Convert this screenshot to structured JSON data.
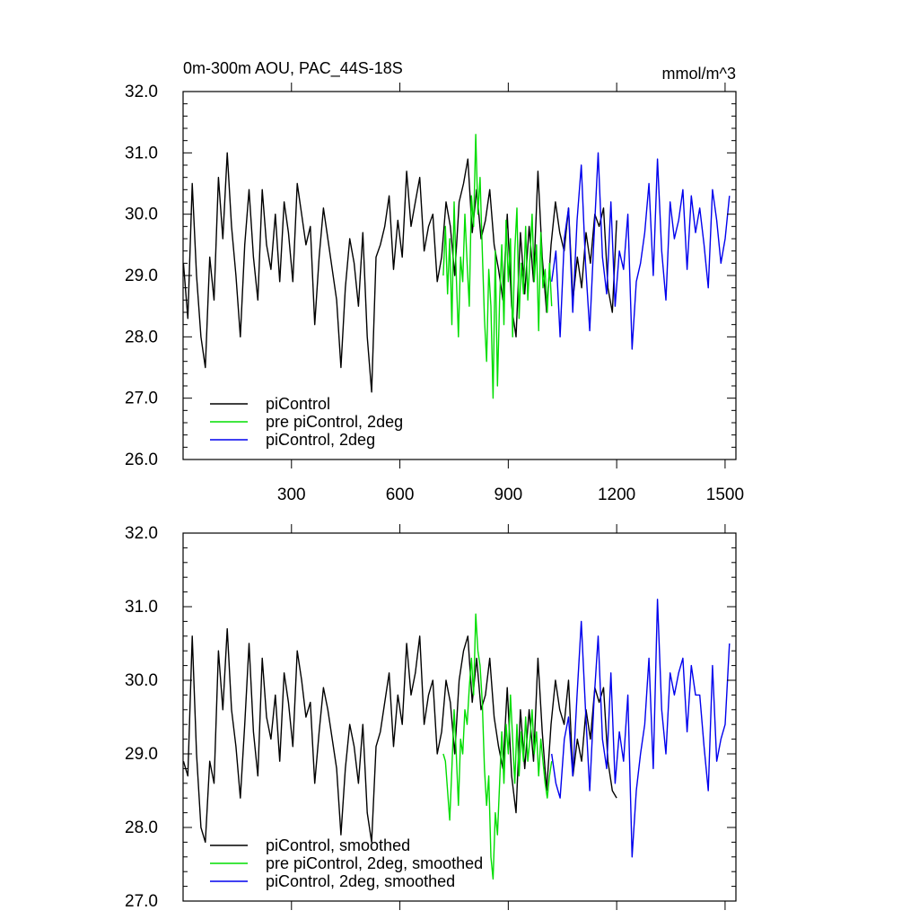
{
  "figure": {
    "title": "0m-300m AOU, PAC_44S-18S",
    "units": "mmol/m^3"
  },
  "chart_data": [
    {
      "type": "line",
      "panel": "top",
      "xlim": [
        0,
        1530
      ],
      "ylim": [
        26.0,
        32.0
      ],
      "xticks": [
        300,
        600,
        900,
        1200,
        1500
      ],
      "xtick_labels": [
        "300",
        "600",
        "900",
        "1200",
        "1500"
      ],
      "yticks": [
        26.0,
        27.0,
        28.0,
        29.0,
        30.0,
        31.0,
        32.0
      ],
      "ytick_labels": [
        "26.0",
        "27.0",
        "28.0",
        "29.0",
        "30.0",
        "31.0",
        "32.0"
      ],
      "legend": "bottom-left",
      "series": [
        {
          "name": "piControl",
          "color": "#000000",
          "x_start": 1,
          "x_end": 1200,
          "step": 12,
          "values": [
            29.2,
            28.3,
            30.5,
            29.0,
            28.0,
            27.5,
            29.3,
            28.6,
            30.6,
            29.6,
            31.0,
            29.8,
            29.0,
            28.0,
            29.5,
            30.4,
            29.3,
            28.6,
            30.4,
            29.5,
            29.1,
            30.0,
            28.9,
            30.2,
            29.7,
            28.9,
            30.5,
            30.0,
            29.5,
            29.8,
            28.2,
            29.3,
            30.1,
            29.6,
            29.1,
            28.6,
            27.5,
            28.8,
            29.6,
            29.2,
            28.5,
            29.7,
            28.0,
            27.1,
            29.3,
            29.5,
            29.8,
            30.3,
            29.1,
            29.9,
            29.3,
            30.7,
            29.8,
            30.2,
            30.6,
            29.4,
            29.8,
            30.0,
            28.9,
            29.3,
            30.2,
            29.8,
            29.0,
            30.2,
            30.5,
            30.9,
            29.7,
            30.4,
            29.6,
            29.9,
            30.4,
            29.5,
            29.1,
            28.6,
            30.0,
            28.5,
            28.0,
            29.7,
            28.7,
            29.8,
            28.9,
            30.7,
            29.3,
            28.4,
            29.5,
            30.2,
            29.7,
            29.4,
            30.1,
            28.6,
            29.3,
            28.8,
            29.7,
            29.2,
            30.0,
            29.8,
            30.1,
            28.8,
            28.4,
            29.9
          ]
        },
        {
          "name": "pre piControl, 2deg",
          "color": "#00dd00",
          "x_start": 720,
          "x_end": 1020,
          "step": 6,
          "values": [
            29.0,
            29.8,
            28.7,
            29.6,
            28.2,
            30.2,
            29.0,
            28.0,
            29.3,
            28.9,
            30.0,
            29.2,
            28.5,
            30.3,
            29.8,
            31.3,
            30.0,
            30.6,
            29.4,
            28.3,
            27.6,
            29.1,
            28.5,
            27.0,
            29.4,
            27.2,
            28.6,
            29.5,
            28.2,
            29.9,
            28.9,
            29.6,
            28.0,
            29.4,
            30.1,
            28.3,
            29.2,
            28.7,
            29.8,
            28.6,
            29.3,
            30.0,
            28.9,
            29.5,
            28.1,
            29.7,
            28.8,
            29.1,
            28.4,
            29.2,
            28.5
          ]
        },
        {
          "name": "piControl, 2deg",
          "color": "#0000ee",
          "x_start": 1020,
          "x_end": 1512,
          "step": 12,
          "values": [
            28.9,
            29.4,
            28.0,
            29.6,
            30.1,
            28.4,
            29.9,
            30.8,
            29.2,
            28.1,
            29.6,
            31.0,
            29.3,
            28.7,
            30.2,
            28.5,
            29.4,
            29.1,
            30.0,
            27.8,
            28.9,
            29.2,
            29.7,
            30.5,
            29.0,
            30.9,
            29.4,
            28.6,
            30.2,
            29.6,
            29.9,
            30.4,
            29.1,
            30.3,
            29.7,
            30.1,
            29.5,
            28.8,
            30.4,
            29.9,
            29.2,
            29.6,
            30.3
          ]
        }
      ]
    },
    {
      "type": "line",
      "panel": "bottom",
      "xlim": [
        0,
        1530
      ],
      "ylim": [
        27.0,
        32.0
      ],
      "xticks": [
        300,
        600,
        900,
        1200,
        1500
      ],
      "xtick_labels": [
        "",
        "",
        "",
        "",
        ""
      ],
      "yticks": [
        27.0,
        28.0,
        29.0,
        30.0,
        31.0,
        32.0
      ],
      "ytick_labels": [
        "27.0",
        "28.0",
        "29.0",
        "30.0",
        "31.0",
        "32.0"
      ],
      "legend": "bottom-left",
      "series": [
        {
          "name": "piControl, smoothed",
          "color": "#000000",
          "x_start": 1,
          "x_end": 1200,
          "step": 12,
          "values": [
            28.9,
            28.7,
            30.6,
            29.0,
            28.0,
            27.8,
            28.9,
            28.6,
            30.4,
            29.6,
            30.7,
            29.6,
            29.1,
            28.4,
            29.4,
            30.5,
            29.3,
            28.7,
            30.3,
            29.5,
            29.2,
            29.8,
            28.9,
            30.1,
            29.7,
            29.1,
            30.4,
            30.0,
            29.5,
            29.7,
            28.6,
            29.3,
            29.9,
            29.6,
            29.2,
            28.8,
            27.9,
            28.8,
            29.4,
            29.1,
            28.6,
            29.4,
            28.2,
            27.8,
            29.1,
            29.3,
            29.7,
            30.1,
            29.1,
            29.8,
            29.4,
            30.5,
            29.8,
            30.1,
            30.6,
            29.4,
            29.8,
            30.0,
            29.0,
            29.3,
            30.0,
            29.7,
            29.0,
            30.0,
            30.4,
            30.6,
            29.7,
            30.3,
            29.6,
            29.8,
            30.3,
            29.5,
            29.1,
            28.8,
            29.9,
            28.7,
            28.2,
            29.6,
            28.8,
            29.6,
            28.9,
            30.3,
            29.3,
            28.5,
            29.4,
            30.0,
            29.6,
            29.4,
            30.0,
            28.7,
            29.2,
            28.9,
            29.6,
            29.2,
            29.9,
            29.7,
            29.9,
            28.9,
            28.5,
            28.4
          ]
        },
        {
          "name": "pre piControl, 2deg, smoothed",
          "color": "#00dd00",
          "x_start": 720,
          "x_end": 1020,
          "step": 6,
          "values": [
            29.0,
            28.9,
            28.5,
            28.1,
            28.8,
            29.6,
            29.0,
            28.3,
            29.2,
            29.0,
            29.6,
            29.4,
            29.9,
            30.3,
            29.8,
            30.9,
            30.4,
            30.2,
            29.7,
            28.8,
            28.3,
            28.7,
            27.6,
            27.3,
            28.2,
            27.9,
            28.6,
            29.3,
            28.6,
            29.4,
            29.0,
            29.8,
            29.2,
            28.6,
            29.4,
            28.7,
            29.3,
            28.9,
            29.5,
            28.9,
            29.2,
            29.6,
            29.0,
            29.3,
            28.7,
            29.2,
            28.9,
            28.6,
            28.4,
            28.7,
            28.9
          ]
        },
        {
          "name": "piControl, 2deg, smoothed",
          "color": "#0000ee",
          "x_start": 1020,
          "x_end": 1512,
          "step": 12,
          "values": [
            29.0,
            28.6,
            28.4,
            29.2,
            29.5,
            28.7,
            29.8,
            30.8,
            29.6,
            28.5,
            29.7,
            30.6,
            29.2,
            28.8,
            30.1,
            28.6,
            29.3,
            28.9,
            29.8,
            27.6,
            28.5,
            29.0,
            29.4,
            30.3,
            28.8,
            31.1,
            29.6,
            29.0,
            30.1,
            29.8,
            30.1,
            30.3,
            29.3,
            30.2,
            29.8,
            29.8,
            29.1,
            28.5,
            30.2,
            28.9,
            29.2,
            29.4,
            30.5
          ]
        }
      ]
    }
  ]
}
